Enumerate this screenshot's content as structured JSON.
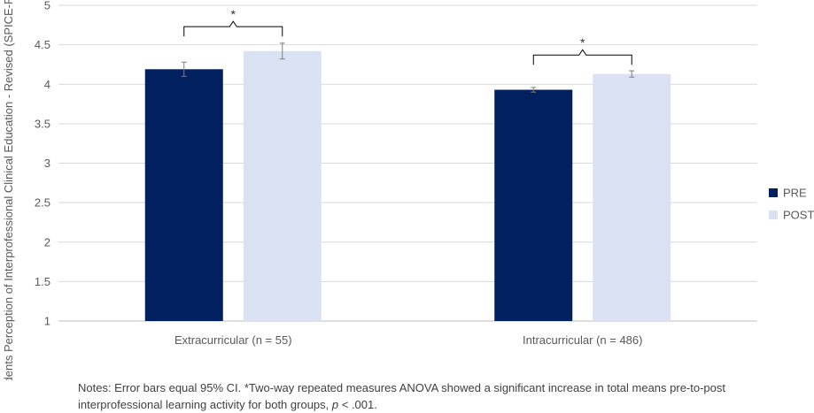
{
  "chart_data": {
    "type": "bar",
    "ylabel": "Students Perception of Interprofessional Clinical Education - Revised (SPICE-R) Total [Mean]",
    "ylim": [
      1,
      5
    ],
    "yticks": [
      "1",
      "1.5",
      "2",
      "2.5",
      "3",
      "3.5",
      "4",
      "4.5",
      "5"
    ],
    "grid": true,
    "legend_position": "right",
    "categories": [
      "Extracurricular (n = 55)",
      "Intracurricular (n = 486)"
    ],
    "series": [
      {
        "name": "PRE",
        "color": "#002060",
        "values": [
          4.19,
          3.93
        ],
        "ci": [
          0.09,
          0.03
        ]
      },
      {
        "name": "POST",
        "color": "#d9e1f2",
        "values": [
          4.42,
          4.13
        ],
        "ci": [
          0.1,
          0.04
        ]
      }
    ],
    "annotations": [
      {
        "category_index": 0,
        "text": "*",
        "bracket_level": 4.73
      },
      {
        "category_index": 1,
        "text": "*",
        "bracket_level": 4.37
      }
    ]
  },
  "notes": {
    "prefix": "Notes: Error bars equal 95% CI. *Two-way repeated measures ANOVA showed a significant increase in total means pre-to-post interprofessional learning activity for both groups, ",
    "p_symbol": "p",
    "suffix": " < .001."
  }
}
